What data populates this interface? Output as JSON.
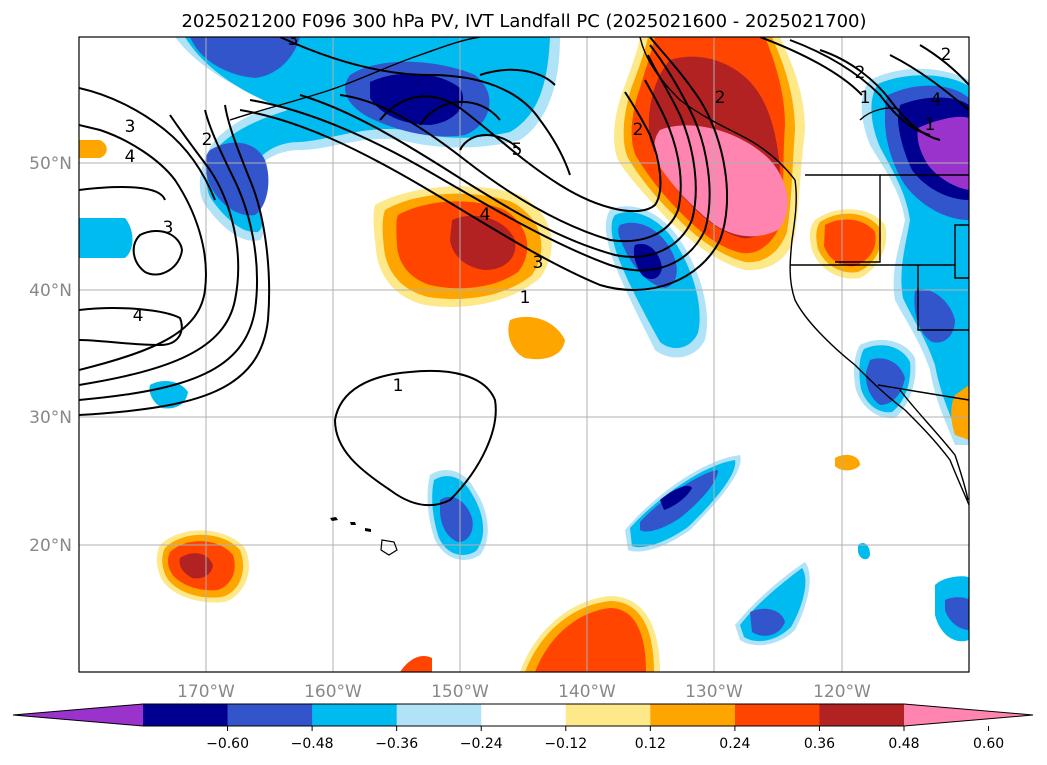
{
  "title": "2025021200 F096 300 hPa PV, IVT Landfall PC (2025021600 - 2025021700)",
  "lat_labels": [
    "50°N",
    "40°N",
    "30°N",
    "20°N"
  ],
  "lon_labels": [
    "170°W",
    "160°W",
    "150°W",
    "140°W",
    "130°W",
    "120°W"
  ],
  "colorbar": {
    "ticks": [
      "−0.60",
      "−0.48",
      "−0.36",
      "−0.24",
      "−0.12",
      "0.12",
      "0.24",
      "0.36",
      "0.48",
      "0.60"
    ],
    "colors": [
      "#9933cc",
      "#000090",
      "#3355cc",
      "#00bbf0",
      "#b0e2f8",
      "#ffffff",
      "#fde98a",
      "#ffa500",
      "#ff4500",
      "#b22222",
      "#ff85b0"
    ]
  },
  "contour_labels": [
    "1",
    "2",
    "3",
    "4",
    "5",
    "4",
    "3",
    "2",
    "1",
    "3",
    "4",
    "2",
    "3",
    "4",
    "1",
    "2",
    "1",
    "2"
  ],
  "map": {
    "lon_range": [
      -180,
      -110
    ],
    "lat_range": [
      10,
      60
    ]
  }
}
